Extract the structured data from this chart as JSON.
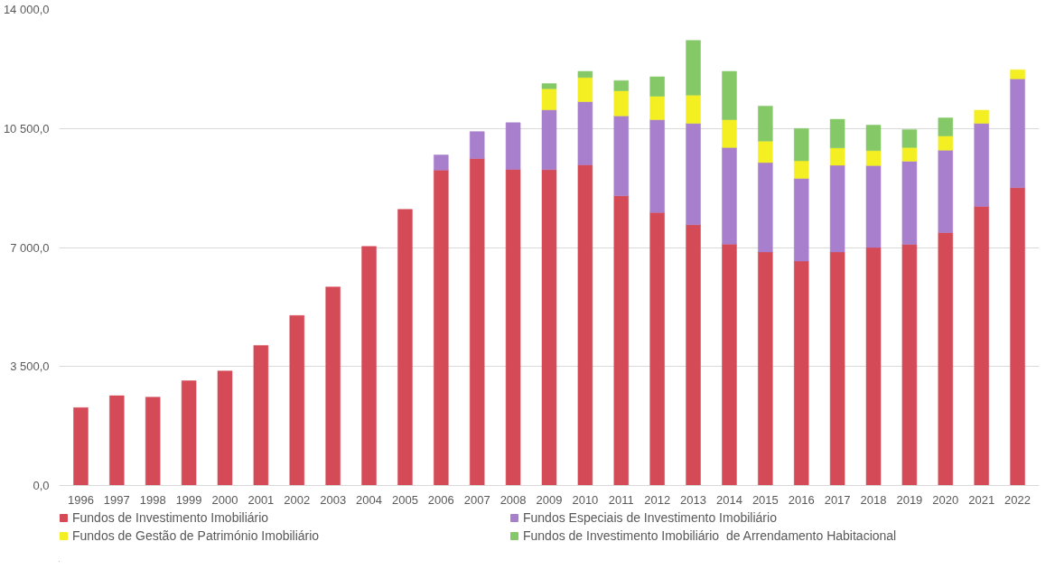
{
  "chart_data": {
    "type": "bar",
    "stacked": true,
    "categories": [
      "1996",
      "1997",
      "1998",
      "1999",
      "2000",
      "2001",
      "2002",
      "2003",
      "2004",
      "2005",
      "2006",
      "2007",
      "2008",
      "2009",
      "2010",
      "2011",
      "2012",
      "2013",
      "2014",
      "2015",
      "2016",
      "2017",
      "2018",
      "2019",
      "2020",
      "2021",
      "2022"
    ],
    "series": [
      {
        "name": "Fundos de Investimento Imobiliário",
        "color": "#d44b57",
        "values": [
          2290,
          2640,
          2600,
          3080,
          3370,
          4120,
          5000,
          5840,
          7030,
          8120,
          9280,
          9620,
          9300,
          9290,
          9430,
          8520,
          8030,
          7670,
          7100,
          6870,
          6600,
          6870,
          7000,
          7090,
          7440,
          8210,
          8760
        ]
      },
      {
        "name": "Fundos Especiais de Investimento Imobiliário",
        "color": "#a87fcc",
        "values": [
          null,
          null,
          null,
          null,
          null,
          null,
          null,
          null,
          null,
          null,
          440,
          790,
          1370,
          1760,
          1860,
          2350,
          2730,
          2980,
          2840,
          2630,
          2430,
          2550,
          2410,
          2450,
          2420,
          2440,
          3200
        ]
      },
      {
        "name": "Fundos de Gestão de Património Imobiliário",
        "color": "#f4ef22",
        "values": [
          null,
          null,
          null,
          null,
          null,
          null,
          null,
          null,
          null,
          null,
          null,
          null,
          null,
          620,
          710,
          740,
          690,
          830,
          820,
          630,
          520,
          510,
          440,
          400,
          420,
          390,
          270
        ]
      },
      {
        "name": "Fundos de Investimento Imobiliário  de Arrendamento Habitacional",
        "color": "#84c868",
        "values": [
          null,
          null,
          null,
          null,
          null,
          null,
          null,
          null,
          null,
          null,
          null,
          null,
          null,
          150,
          180,
          300,
          570,
          1610,
          1420,
          1030,
          950,
          840,
          750,
          530,
          530,
          null,
          null
        ]
      }
    ],
    "ylim": [
      0,
      14000
    ],
    "yticks": [
      {
        "value": 0,
        "label": "0,0"
      },
      {
        "value": 3500,
        "label": "3 500,0"
      },
      {
        "value": 7000,
        "label": "7 000,0"
      },
      {
        "value": 10500,
        "label": "10 500,0"
      },
      {
        "value": 14000,
        "label": "14 000,0"
      }
    ],
    "grid": "y",
    "legend": "bottom"
  }
}
